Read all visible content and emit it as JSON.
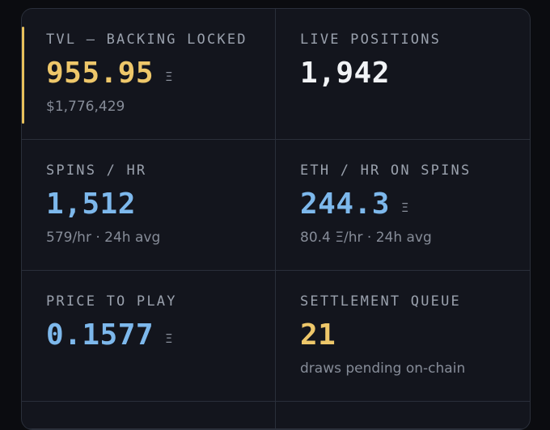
{
  "colors": {
    "gold": "#eec76a",
    "white": "#f1f3f6",
    "blue": "#7db8ec",
    "accent_bar": "#e8c15c",
    "panel_bg": "#13151d",
    "border": "#2a2f3a"
  },
  "stats": {
    "tvl": {
      "label": "TVL — BACKING LOCKED",
      "value": "955.95",
      "unit": "Ξ",
      "sub": "$1,776,429"
    },
    "live_positions": {
      "label": "LIVE POSITIONS",
      "value": "1,942"
    },
    "spins_hr": {
      "label": "SPINS / HR",
      "value": "1,512",
      "sub": "579/hr · 24h avg"
    },
    "eth_hr": {
      "label": "ETH / HR ON SPINS",
      "value": "244.3",
      "unit": "Ξ",
      "sub": "80.4 Ξ/hr · 24h avg"
    },
    "price_to_play": {
      "label": "PRICE TO PLAY",
      "value": "0.1577",
      "unit": "Ξ"
    },
    "settlement_queue": {
      "label": "SETTLEMENT QUEUE",
      "value": "21",
      "sub": "draws pending on-chain"
    }
  }
}
